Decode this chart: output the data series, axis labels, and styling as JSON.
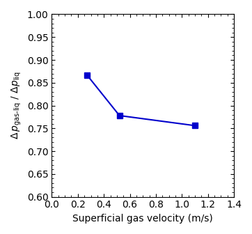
{
  "x": [
    0.27,
    0.52,
    1.1
  ],
  "y": [
    0.867,
    0.778,
    0.756
  ],
  "line_color": "#0000CC",
  "marker": "s",
  "marker_size": 6,
  "xlabel": "Superficial gas velocity (m/s)",
  "ylabel": "Δ p$_\\mathrm{gas\\text{-}liq}$ / Δp$_\\mathrm{liq}$",
  "xlim": [
    0,
    1.4
  ],
  "ylim": [
    0.6,
    1.0
  ],
  "xticks": [
    0,
    0.2,
    0.4,
    0.6,
    0.8,
    1.0,
    1.2,
    1.4
  ],
  "yticks": [
    0.6,
    0.65,
    0.7,
    0.75,
    0.8,
    0.85,
    0.9,
    0.95,
    1.0
  ]
}
